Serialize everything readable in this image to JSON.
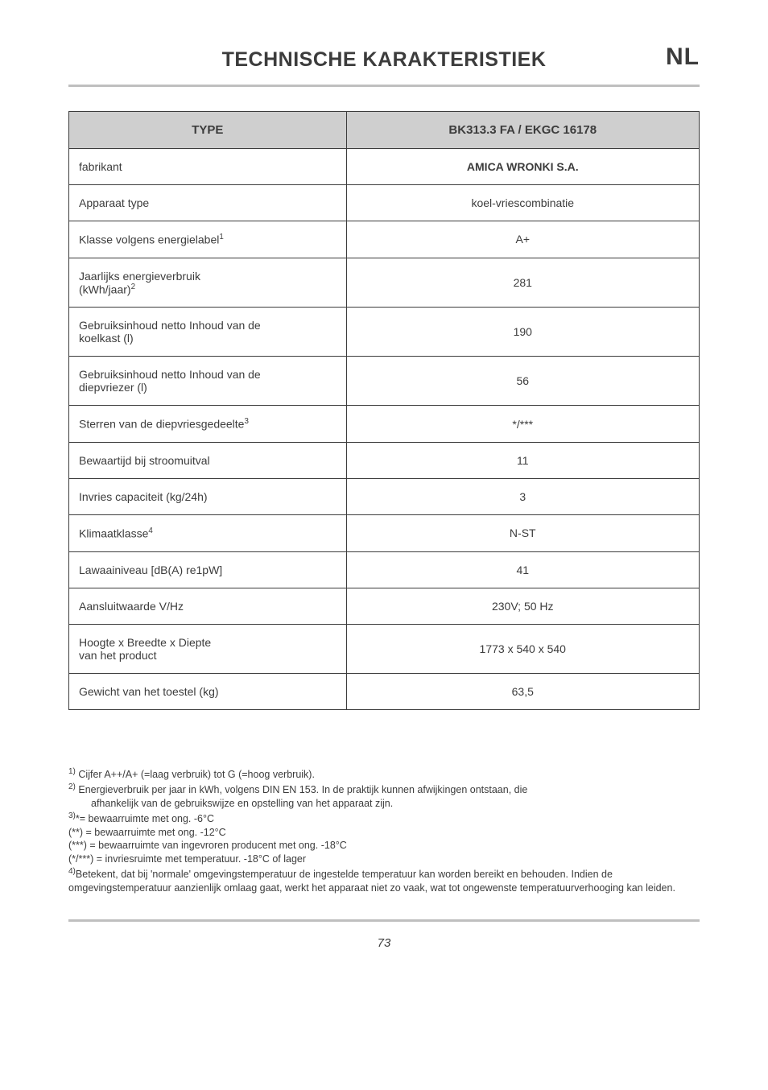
{
  "header": {
    "title": "TECHNISCHE KARAKTERISTIEK",
    "lang": "NL"
  },
  "table": {
    "header": {
      "left": "TYPE",
      "right": "BK313.3 FA / EKGC 16178"
    },
    "rows": [
      {
        "label": "fabrikant",
        "value": "AMICA WRONKI S.A.",
        "bold": true
      },
      {
        "label": "Apparaat type",
        "value": "koel-vriescombinatie"
      },
      {
        "label_html": "Klasse volgens energielabel<sup>1</sup>",
        "value": "A+"
      },
      {
        "label_html": "Jaarlijks energieverbruik<br>(kWh/jaar)<sup>2</sup>",
        "value": "281"
      },
      {
        "label_html": "Gebruiksinhoud netto Inhoud van de<br>koelkast (l)",
        "value": "190"
      },
      {
        "label_html": "Gebruiksinhoud netto Inhoud van de<br>diepvriezer (l)",
        "value": "56"
      },
      {
        "label_html": "Sterren van de diepvriesgedeelte<sup>3</sup>",
        "value": "*/***"
      },
      {
        "label": "Bewaartijd bij stroomuitval",
        "value": "11"
      },
      {
        "label": "Invries capaciteit (kg/24h)",
        "value": "3"
      },
      {
        "label_html": "Klimaatklasse<sup>4</sup>",
        "value": "N-ST"
      },
      {
        "label": "Lawaainiveau [dB(A) re1pW]",
        "value": "41"
      },
      {
        "label": "Aansluitwaarde V/Hz",
        "value": "230V; 50 Hz"
      },
      {
        "label_html": "Hoogte x Breedte x Diepte<br>van het product",
        "value": "1773 x 540 x 540"
      },
      {
        "label": "Gewicht van het toestel (kg)",
        "value": "63,5"
      }
    ]
  },
  "footnotes": {
    "n1": "Cijfer A++/A+ (=laag verbruik) tot G (=hoog verbruik).",
    "n2a": "Energieverbruik per jaar in kWh, volgens DIN EN 153.  In de praktijk kunnen afwijkingen ontstaan, die",
    "n2b": "afhankelijk van de gebruikswijze en opstelling van het apparaat zijn.",
    "n3a": "= bewaarruimte met ong. -6°C",
    "n3b": "(**) = bewaarruimte met ong. -12°C",
    "n3c": "(***) = bewaarruimte van ingevroren producent met ong. -18°C",
    "n3d": "(*/***) = invriesruimte met temperatuur. -18°C of lager",
    "n4": "Betekent, dat bij 'normale' omgevingstemperatuur de ingestelde temperatuur kan worden bereikt en behouden.  Indien de omgevingstemperatuur aanzienlijk omlaag gaat, werkt het apparaat niet zo vaak, wat tot ongewenste temperatuurverhooging kan leiden."
  },
  "page_number": "73"
}
